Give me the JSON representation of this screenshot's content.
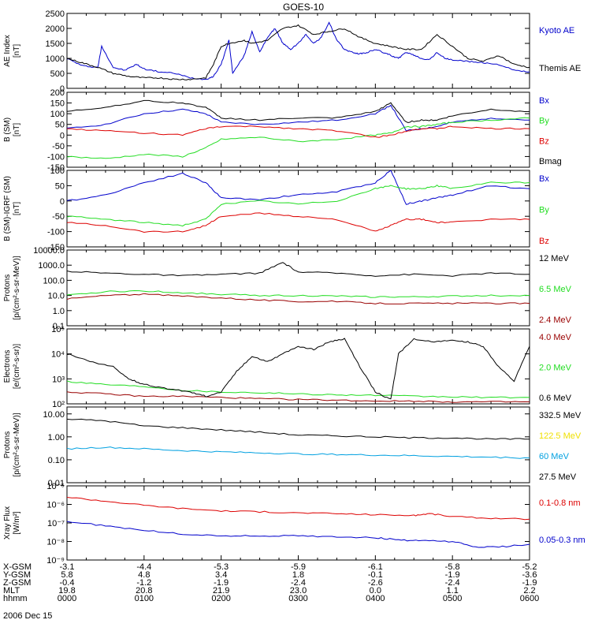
{
  "title": "GOES-10",
  "x_axis": {
    "time_range_hhmm": [
      "0000",
      "0600"
    ],
    "rows": [
      {
        "label": "X-GSM",
        "values": [
          "-3.1",
          "-4.4",
          "-5.3",
          "-5.9",
          "-6.1",
          "-5.8",
          "-5.2"
        ]
      },
      {
        "label": "Y-GSM",
        "values": [
          "5.8",
          "4.8",
          "3.4",
          "1.8",
          "-0.1",
          "-1.9",
          "-3.6"
        ]
      },
      {
        "label": "Z-GSM",
        "values": [
          "-0.4",
          "-1.2",
          "-1.9",
          "-2.4",
          "-2.6",
          "-2.4",
          "-1.9"
        ]
      },
      {
        "label": "MLT",
        "values": [
          "19.8",
          "20.8",
          "21.9",
          "23.0",
          "0.0",
          "1.1",
          "2.2"
        ]
      },
      {
        "label": "hhmm",
        "values": [
          "0000",
          "0100",
          "0200",
          "0300",
          "0400",
          "0500",
          "0600"
        ]
      }
    ],
    "date": "2006 Dec 15"
  },
  "colors": {
    "black": "#000000",
    "blue": "#0000cc",
    "green": "#22dd22",
    "red": "#dd0000",
    "darkred": "#990000",
    "cyan": "#00a0e0",
    "yellow": "#f0e000"
  },
  "chart_data": [
    {
      "type": "line",
      "id": "ae",
      "ylabel": [
        "AE Index",
        "[nT]"
      ],
      "ylim": [
        0,
        2500
      ],
      "ticks": [
        "0",
        "500",
        "1000",
        "1500",
        "2000",
        "2500"
      ],
      "tick_values": [
        0,
        500,
        1000,
        1500,
        2000,
        2500
      ],
      "series": [
        {
          "name": "Kyoto AE",
          "color": "#0000cc",
          "t": [
            0,
            0.2,
            0.4,
            0.45,
            0.6,
            0.75,
            0.9,
            1.0,
            1.2,
            1.4,
            1.6,
            1.8,
            1.9,
            2.0,
            2.1,
            2.15,
            2.3,
            2.4,
            2.5,
            2.6,
            2.7,
            2.8,
            2.9,
            3.0,
            3.1,
            3.2,
            3.3,
            3.4,
            3.5,
            3.6,
            3.7,
            3.8,
            3.9,
            4.0,
            4.1,
            4.2,
            4.3,
            4.4,
            4.5,
            4.6,
            4.7,
            4.8,
            4.9,
            5.0,
            5.2,
            5.4,
            5.6,
            5.8,
            6.0
          ],
          "y": [
            1000,
            750,
            700,
            1400,
            700,
            600,
            800,
            650,
            550,
            500,
            350,
            300,
            400,
            800,
            1600,
            500,
            1100,
            1900,
            1200,
            1700,
            2000,
            1500,
            1300,
            1500,
            1800,
            1500,
            1700,
            2200,
            1600,
            1300,
            1200,
            1150,
            1200,
            1300,
            1200,
            1100,
            1000,
            1200,
            1100,
            1000,
            950,
            1200,
            1000,
            950,
            900,
            850,
            800,
            600,
            550
          ]
        },
        {
          "name": "Themis AE",
          "color": "#000000",
          "t": [
            0,
            0.2,
            0.4,
            0.6,
            0.8,
            1.0,
            1.2,
            1.4,
            1.6,
            1.8,
            1.9,
            2.0,
            2.1,
            2.3,
            2.4,
            2.6,
            2.8,
            3.0,
            3.2,
            3.4,
            3.6,
            3.8,
            4.0,
            4.2,
            4.4,
            4.6,
            4.8,
            5.0,
            5.2,
            5.4,
            5.6,
            5.8,
            6.0
          ],
          "y": [
            1000,
            850,
            700,
            500,
            400,
            350,
            350,
            300,
            300,
            350,
            800,
            1400,
            1500,
            1600,
            1500,
            1600,
            2000,
            2100,
            1800,
            1900,
            2000,
            1700,
            1500,
            1400,
            1300,
            1300,
            1800,
            1400,
            1000,
            900,
            1100,
            800,
            700
          ]
        }
      ]
    },
    {
      "type": "line",
      "id": "bsm",
      "ylabel": [
        "B (SM)",
        "[nT]"
      ],
      "ylim": [
        -150,
        200
      ],
      "ticks": [
        "-150",
        "-100",
        "-50",
        "0",
        "50",
        "100",
        "150",
        "200"
      ],
      "tick_values": [
        -150,
        -100,
        -50,
        0,
        50,
        100,
        150,
        200
      ],
      "series": [
        {
          "name": "Bx",
          "color": "#0000cc",
          "t": [
            0,
            0.5,
            1.0,
            1.5,
            1.8,
            2.0,
            2.5,
            3.0,
            3.5,
            4.0,
            4.2,
            4.4,
            4.6,
            4.8,
            5.0,
            5.5,
            6.0
          ],
          "y": [
            30,
            50,
            100,
            120,
            100,
            60,
            50,
            60,
            70,
            100,
            140,
            20,
            30,
            40,
            60,
            80,
            70
          ]
        },
        {
          "name": "By",
          "color": "#22dd22",
          "t": [
            0,
            0.5,
            1.0,
            1.5,
            1.8,
            2.0,
            2.5,
            3.0,
            3.5,
            4.0,
            4.2,
            4.4,
            4.6,
            4.8,
            5.0,
            5.5,
            6.0
          ],
          "y": [
            -100,
            -110,
            -90,
            -100,
            -60,
            -20,
            -10,
            -30,
            -20,
            0,
            10,
            40,
            40,
            50,
            60,
            70,
            80
          ]
        },
        {
          "name": "Bz",
          "color": "#dd0000",
          "t": [
            0,
            0.5,
            1.0,
            1.5,
            1.8,
            2.0,
            2.5,
            3.0,
            3.5,
            4.0,
            4.2,
            4.4,
            4.6,
            4.8,
            5.0,
            5.5,
            6.0
          ],
          "y": [
            30,
            20,
            10,
            0,
            30,
            40,
            40,
            30,
            20,
            -10,
            0,
            20,
            30,
            30,
            40,
            30,
            30
          ]
        },
        {
          "name": "Bmag",
          "color": "#000000",
          "t": [
            0,
            0.5,
            1.0,
            1.5,
            1.8,
            2.0,
            2.5,
            3.0,
            3.5,
            4.0,
            4.2,
            4.4,
            4.6,
            4.8,
            5.0,
            5.5,
            6.0
          ],
          "y": [
            110,
            130,
            160,
            150,
            130,
            80,
            70,
            80,
            80,
            110,
            150,
            60,
            70,
            70,
            90,
            120,
            110
          ]
        }
      ]
    },
    {
      "type": "line",
      "id": "bigrf",
      "ylabel": [
        "B (SM)-IGRF (SM)",
        "[nT]"
      ],
      "ylim": [
        -150,
        100
      ],
      "ticks": [
        "-150",
        "-100",
        "-50",
        "0",
        "50",
        "100"
      ],
      "tick_values": [
        -150,
        -100,
        -50,
        0,
        50,
        100
      ],
      "series": [
        {
          "name": "Bx",
          "color": "#0000cc",
          "t": [
            0,
            0.5,
            1.0,
            1.5,
            1.8,
            2.0,
            2.5,
            3.0,
            3.5,
            4.0,
            4.2,
            4.4,
            4.6,
            4.8,
            5.0,
            5.5,
            6.0
          ],
          "y": [
            0,
            20,
            60,
            90,
            60,
            10,
            5,
            20,
            30,
            60,
            100,
            -10,
            0,
            10,
            20,
            50,
            40
          ]
        },
        {
          "name": "By",
          "color": "#22dd22",
          "t": [
            0,
            0.5,
            1.0,
            1.5,
            1.8,
            2.0,
            2.5,
            3.0,
            3.5,
            4.0,
            4.2,
            4.4,
            4.6,
            4.8,
            5.0,
            5.5,
            6.0
          ],
          "y": [
            -50,
            -60,
            -70,
            -80,
            -60,
            -10,
            0,
            -10,
            0,
            40,
            50,
            40,
            40,
            50,
            40,
            60,
            60
          ]
        },
        {
          "name": "Bz",
          "color": "#dd0000",
          "t": [
            0,
            0.5,
            1.0,
            1.5,
            1.8,
            2.0,
            2.5,
            3.0,
            3.5,
            4.0,
            4.2,
            4.4,
            4.6,
            4.8,
            5.0,
            5.5,
            6.0
          ],
          "y": [
            -70,
            -80,
            -100,
            -100,
            -80,
            -50,
            -40,
            -50,
            -60,
            -100,
            -80,
            -60,
            -60,
            -70,
            -70,
            -60,
            -60
          ]
        }
      ]
    },
    {
      "type": "line",
      "id": "protons1",
      "log": true,
      "ylabel": [
        "Protons",
        "[p/(cm²-s-sr-MeV)]"
      ],
      "ylim": [
        0.1,
        10000
      ],
      "ticks": [
        "0.1",
        "1.0",
        "10.0",
        "100.0",
        "1000.0",
        "10000.0"
      ],
      "tick_values": [
        0.1,
        1,
        10,
        100,
        1000,
        10000
      ],
      "series": [
        {
          "name": "12 MeV",
          "color": "#000000",
          "t": [
            0,
            0.5,
            1.0,
            1.5,
            2.0,
            2.5,
            2.8,
            3.0,
            3.5,
            4.0,
            4.5,
            5.0,
            5.5,
            6.0
          ],
          "y": [
            400,
            300,
            250,
            200,
            250,
            300,
            1500,
            350,
            300,
            200,
            250,
            200,
            300,
            250
          ]
        },
        {
          "name": "6.5 MeV",
          "color": "#22dd22",
          "t": [
            0,
            0.5,
            1.0,
            1.5,
            2.0,
            2.5,
            3.0,
            3.5,
            4.0,
            4.5,
            5.0,
            5.5,
            6.0
          ],
          "y": [
            10,
            18,
            20,
            15,
            12,
            10,
            10,
            9,
            8,
            8,
            9,
            10,
            10
          ]
        },
        {
          "name": "2.4 MeV",
          "color": "#990000",
          "t": [
            0,
            0.5,
            1.0,
            1.5,
            2.0,
            2.5,
            3.0,
            3.5,
            4.0,
            4.5,
            5.0,
            5.5,
            6.0
          ],
          "y": [
            6,
            10,
            12,
            9,
            7,
            5,
            4,
            4,
            3,
            3,
            3,
            3,
            3
          ]
        }
      ]
    },
    {
      "type": "line",
      "id": "electrons",
      "log": true,
      "ylabel": [
        "Electrons",
        "[e/(cm²-s-sr)]"
      ],
      "ylim": [
        100,
        100000
      ],
      "ticks": [
        "10²",
        "10³",
        "10⁴",
        "10⁵"
      ],
      "tick_values": [
        100,
        1000,
        10000,
        100000
      ],
      "series": [
        {
          "name": "4.0 MeV",
          "color": "#990000",
          "t": [
            0,
            0.5,
            1.0,
            1.5,
            2.0,
            2.5,
            3.0,
            3.5,
            4.0,
            4.5,
            5.0,
            5.5,
            6.0
          ],
          "y": [
            300,
            250,
            200,
            200,
            180,
            160,
            150,
            140,
            130,
            130,
            120,
            120,
            120
          ]
        },
        {
          "name": "2.0 MeV",
          "color": "#22dd22",
          "t": [
            0,
            0.5,
            1.0,
            1.5,
            2.0,
            2.5,
            3.0,
            3.5,
            4.0,
            4.5,
            5.0,
            5.5,
            6.0
          ],
          "y": [
            800,
            600,
            500,
            350,
            300,
            280,
            250,
            230,
            220,
            200,
            190,
            180,
            180
          ]
        },
        {
          "name": "0.6 MeV",
          "color": "#000000",
          "t": [
            0,
            0.3,
            0.6,
            0.8,
            1.0,
            1.3,
            1.6,
            1.8,
            2.0,
            2.2,
            2.4,
            2.6,
            2.8,
            3.0,
            3.2,
            3.4,
            3.6,
            3.8,
            4.0,
            4.2,
            4.3,
            4.5,
            4.8,
            5.0,
            5.2,
            5.4,
            5.6,
            5.8,
            6.0
          ],
          "y": [
            10000,
            5000,
            3000,
            1000,
            600,
            400,
            300,
            200,
            300,
            2000,
            8000,
            5000,
            10000,
            20000,
            15000,
            30000,
            40000,
            3000,
            300,
            150,
            10000,
            40000,
            30000,
            35000,
            30000,
            20000,
            3000,
            800,
            20000
          ]
        }
      ]
    },
    {
      "type": "line",
      "id": "protons2",
      "log": true,
      "ylabel": [
        "Protons",
        "[p/(cm²-s-sr-MeV)]"
      ],
      "ylim": [
        0.01,
        20
      ],
      "ticks": [
        "0.01",
        "0.10",
        "1.00",
        "10.00"
      ],
      "tick_values": [
        0.01,
        0.1,
        1,
        10
      ],
      "series": [
        {
          "name": "332.5 MeV",
          "color": "#000000",
          "t": [
            0,
            0.5,
            1.0,
            1.5,
            2.0,
            2.5,
            3.0,
            3.5,
            4.0,
            4.5,
            5.0,
            5.5,
            6.0
          ],
          "y": [
            6,
            5,
            3,
            2.5,
            2,
            1.6,
            1.2,
            1.1,
            1.0,
            0.9,
            0.9,
            0.8,
            0.8
          ]
        },
        {
          "name": "122.5 MeV",
          "color": "#f0e000",
          "t": [],
          "y": []
        },
        {
          "name": "60 MeV",
          "color": "#00a0e0",
          "t": [
            0,
            0.5,
            1.0,
            1.5,
            2.0,
            2.5,
            3.0,
            3.5,
            4.0,
            4.5,
            5.0,
            5.5,
            6.0
          ],
          "y": [
            0.3,
            0.35,
            0.3,
            0.25,
            0.22,
            0.2,
            0.18,
            0.17,
            0.16,
            0.15,
            0.14,
            0.13,
            0.12
          ]
        },
        {
          "name": "27.5 MeV",
          "color": "#000000",
          "t": [],
          "y": []
        }
      ]
    },
    {
      "type": "line",
      "id": "xray",
      "log": true,
      "ylabel": [
        "Xray Flux",
        "[W/m²]"
      ],
      "ylim": [
        1e-09,
        1e-05
      ],
      "ticks": [
        "10⁻⁹",
        "10⁻⁸",
        "10⁻⁷",
        "10⁻⁶",
        "10⁻⁵"
      ],
      "tick_values": [
        1e-09,
        1e-08,
        1e-07,
        1e-06,
        1e-05
      ],
      "series": [
        {
          "name": "0.1-0.8 nm",
          "color": "#dd0000",
          "t": [
            0,
            0.5,
            1.0,
            1.5,
            2.0,
            2.5,
            3.0,
            3.5,
            4.0,
            4.5,
            4.7,
            5.0,
            5.5,
            6.0
          ],
          "y": [
            2.5e-06,
            1.5e-06,
            9e-07,
            6e-07,
            4.5e-07,
            4e-07,
            3.5e-07,
            3.2e-07,
            2.8e-07,
            2.5e-07,
            3.2e-07,
            2.2e-07,
            1.8e-07,
            1.6e-07
          ]
        },
        {
          "name": "0.05-0.3 nm",
          "color": "#0000cc",
          "t": [
            0,
            0.5,
            1.0,
            1.5,
            2.0,
            2.5,
            3.0,
            3.5,
            4.0,
            4.3,
            4.6,
            5.0,
            5.3,
            5.6,
            6.0
          ],
          "y": [
            1.2e-07,
            7e-08,
            4e-08,
            2.5e-08,
            2e-08,
            2e-08,
            2e-08,
            1.8e-08,
            1.6e-08,
            1.2e-08,
            1.1e-08,
            1e-08,
            5e-09,
            5e-09,
            7e-09
          ]
        }
      ]
    }
  ]
}
